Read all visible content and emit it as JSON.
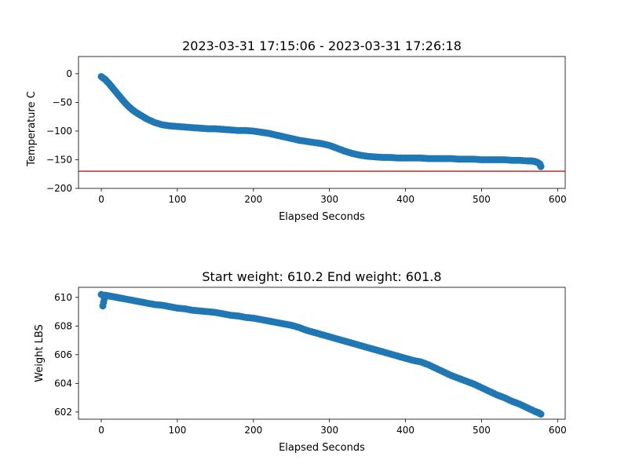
{
  "chart_data": [
    {
      "type": "scatter",
      "title": "2023-03-31 17:15:06 - 2023-03-31 17:26:18",
      "xlabel": "Elapsed Seconds",
      "ylabel": "Temperature C",
      "xlim": [
        -30,
        610
      ],
      "ylim": [
        -200,
        30
      ],
      "xticks": [
        0,
        100,
        200,
        300,
        400,
        500,
        600
      ],
      "yticks": [
        -200,
        -150,
        -100,
        -50,
        0
      ],
      "marker_color": "#1f77b4",
      "hline": {
        "y": -170,
        "color": "#d62728"
      },
      "series": [
        {
          "x": [
            0,
            5,
            10,
            15,
            20,
            25,
            30,
            35,
            40,
            45,
            50,
            55,
            60,
            70,
            80,
            90,
            100,
            110,
            120,
            130,
            140,
            150,
            160,
            170,
            180,
            190,
            200,
            210,
            220,
            230,
            240,
            250,
            260,
            270,
            280,
            290,
            300,
            310,
            320,
            330,
            340,
            350,
            360,
            370,
            380,
            390,
            400,
            410,
            420,
            430,
            440,
            450,
            460,
            470,
            480,
            490,
            500,
            510,
            520,
            530,
            540,
            550,
            560,
            565,
            570,
            574,
            577,
            578
          ],
          "y": [
            -5,
            -10,
            -17,
            -25,
            -33,
            -41,
            -49,
            -56,
            -62,
            -67,
            -71,
            -75,
            -79,
            -85,
            -89,
            -91,
            -92,
            -93,
            -94,
            -95,
            -96,
            -96,
            -97,
            -98,
            -99,
            -99,
            -100,
            -102,
            -104,
            -107,
            -110,
            -113,
            -116,
            -118,
            -120,
            -122,
            -125,
            -130,
            -135,
            -139,
            -142,
            -144,
            -145,
            -146,
            -146,
            -147,
            -147,
            -147,
            -147,
            -148,
            -148,
            -148,
            -148,
            -149,
            -149,
            -149,
            -150,
            -150,
            -150,
            -150,
            -151,
            -151,
            -152,
            -152,
            -153,
            -155,
            -158,
            -162
          ]
        }
      ]
    },
    {
      "type": "scatter",
      "title": "Start weight: 610.2 End weight: 601.8",
      "xlabel": "Elapsed Seconds",
      "ylabel": "Weight LBS",
      "xlim": [
        -30,
        610
      ],
      "ylim": [
        601.5,
        610.7
      ],
      "xticks": [
        0,
        100,
        200,
        300,
        400,
        500,
        600
      ],
      "yticks": [
        602,
        604,
        606,
        608,
        610
      ],
      "marker_color": "#1f77b4",
      "series": [
        {
          "x": [
            0,
            2,
            5,
            10,
            15,
            20,
            25,
            30,
            40,
            50,
            60,
            70,
            80,
            90,
            100,
            110,
            120,
            130,
            140,
            150,
            160,
            170,
            180,
            190,
            200,
            210,
            220,
            230,
            240,
            250,
            260,
            270,
            280,
            290,
            300,
            310,
            320,
            330,
            340,
            350,
            360,
            370,
            380,
            390,
            400,
            410,
            420,
            430,
            440,
            450,
            460,
            470,
            480,
            490,
            500,
            510,
            520,
            530,
            540,
            550,
            560,
            570,
            575,
            578
          ],
          "y": [
            610.2,
            609.4,
            610.15,
            610.1,
            610.05,
            610.0,
            609.95,
            609.9,
            609.8,
            609.7,
            609.6,
            609.5,
            609.45,
            609.35,
            609.25,
            609.2,
            609.1,
            609.05,
            609.0,
            608.95,
            608.85,
            608.75,
            608.7,
            608.6,
            608.55,
            608.45,
            608.35,
            608.25,
            608.15,
            608.05,
            607.9,
            607.7,
            607.55,
            607.4,
            607.25,
            607.1,
            606.95,
            606.8,
            606.65,
            606.5,
            606.35,
            606.2,
            606.05,
            605.9,
            605.75,
            605.6,
            605.5,
            605.3,
            605.05,
            604.8,
            604.55,
            604.35,
            604.15,
            603.95,
            603.7,
            603.45,
            603.2,
            603.0,
            602.75,
            602.55,
            602.3,
            602.05,
            601.95,
            601.85
          ]
        }
      ]
    }
  ]
}
